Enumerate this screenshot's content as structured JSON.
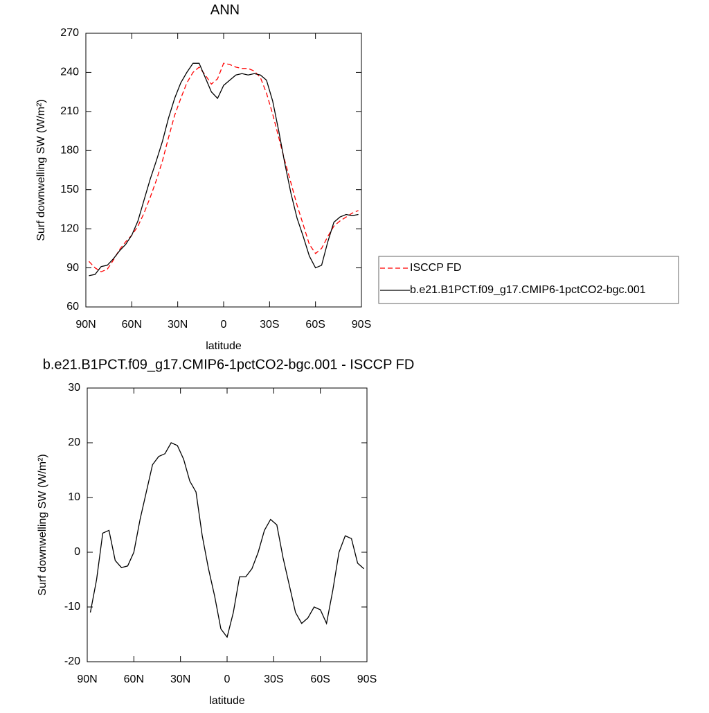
{
  "chart_data": [
    {
      "type": "line",
      "title": "ANN",
      "xlabel": "latitude",
      "ylabel": "Surf downwelling SW (W/m²)",
      "x": [
        88,
        84,
        80,
        76,
        72,
        68,
        64,
        60,
        56,
        52,
        48,
        44,
        40,
        36,
        32,
        28,
        24,
        20,
        16,
        12,
        8,
        4,
        0,
        -4,
        -8,
        -12,
        -16,
        -20,
        -24,
        -28,
        -32,
        -36,
        -40,
        -44,
        -48,
        -52,
        -56,
        -60,
        -64,
        -68,
        -72,
        -76,
        -80,
        -84,
        -88
      ],
      "series": [
        {
          "name": "ISCCP FD",
          "color": "#ff0000",
          "dash": true,
          "values": [
            95,
            90,
            87,
            89,
            96,
            104,
            110,
            115,
            122,
            132,
            144,
            157,
            172,
            190,
            207,
            220,
            232,
            240,
            244,
            238,
            231,
            235,
            247,
            246,
            244,
            243,
            243,
            241,
            236,
            224,
            208,
            190,
            172,
            155,
            138,
            123,
            108,
            101,
            105,
            114,
            122,
            126,
            129,
            132,
            134
          ]
        },
        {
          "name": "b.e21.B1PCT.f09_g17.CMIP6-1pctCO2-bgc.001",
          "color": "#000000",
          "dash": false,
          "values": [
            84,
            85,
            91,
            92,
            97,
            103,
            108,
            115,
            126,
            142,
            158,
            172,
            187,
            205,
            220,
            232,
            240,
            247,
            247,
            236,
            225,
            220,
            230,
            234,
            238,
            239,
            238,
            239,
            238,
            234,
            218,
            195,
            170,
            147,
            128,
            114,
            99,
            90,
            92,
            110,
            125,
            129,
            131,
            130,
            131
          ]
        }
      ],
      "xlim": [
        90,
        -90
      ],
      "xticks": [
        {
          "value": 90,
          "label": "90N"
        },
        {
          "value": 60,
          "label": "60N"
        },
        {
          "value": 30,
          "label": "30N"
        },
        0,
        {
          "value": -30,
          "label": "30S"
        },
        {
          "value": -60,
          "label": "60S"
        },
        {
          "value": -90,
          "label": "90S"
        }
      ],
      "ylim": [
        60,
        270
      ],
      "yticks": [
        60,
        90,
        120,
        150,
        180,
        210,
        240,
        270
      ],
      "legend": "outside-right"
    },
    {
      "type": "line",
      "title": "b.e21.B1PCT.f09_g17.CMIP6-1pctCO2-bgc.001 - ISCCP FD",
      "xlabel": "latitude",
      "ylabel": "Surf downwelling SW (W/m²)",
      "x": [
        88,
        84,
        80,
        76,
        72,
        68,
        64,
        60,
        56,
        52,
        48,
        44,
        40,
        36,
        32,
        28,
        24,
        20,
        16,
        12,
        8,
        4,
        0,
        -4,
        -8,
        -12,
        -16,
        -20,
        -24,
        -28,
        -32,
        -36,
        -40,
        -44,
        -48,
        -52,
        -56,
        -60,
        -64,
        -68,
        -72,
        -76,
        -80,
        -84,
        -88
      ],
      "color": "#000000",
      "values": [
        -11,
        -5,
        3.5,
        4,
        -1.5,
        -2.8,
        -2.5,
        0,
        6,
        11,
        16,
        17.5,
        18,
        20,
        19.5,
        17,
        13,
        11,
        3,
        -3,
        -8,
        -14,
        -15.5,
        -11,
        -4.5,
        -4.5,
        -3,
        0,
        4,
        6,
        5,
        -1,
        -6,
        -11,
        -13,
        -12,
        -10,
        -10.5,
        -13,
        -7,
        0,
        3,
        2.5,
        -2,
        -3
      ],
      "xlim": [
        90,
        -90
      ],
      "xticks": [
        {
          "value": 90,
          "label": "90N"
        },
        {
          "value": 60,
          "label": "60N"
        },
        {
          "value": 30,
          "label": "30N"
        },
        0,
        {
          "value": -30,
          "label": "30S"
        },
        {
          "value": -60,
          "label": "60S"
        },
        {
          "value": -90,
          "label": "90S"
        }
      ],
      "ylim": [
        -20,
        30
      ],
      "yticks": [
        -20,
        -10,
        0,
        10,
        20,
        30
      ]
    }
  ]
}
